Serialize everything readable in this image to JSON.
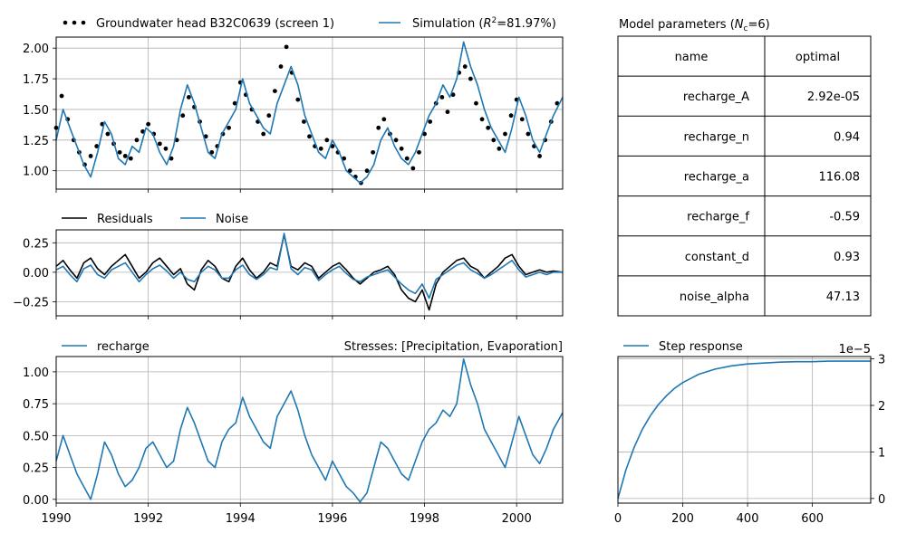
{
  "colors": {
    "blue": "#1f77b4",
    "black": "#000000",
    "grid": "#b0b0b0"
  },
  "chart_data": [
    {
      "type": "line",
      "panel": "head",
      "xlim": [
        1990,
        2001.0
      ],
      "ylim": [
        0.85,
        2.09
      ],
      "yticks": [
        1.0,
        1.25,
        1.5,
        1.75,
        2.0
      ],
      "ytick_labels": [
        "1.00",
        "1.25",
        "1.50",
        "1.75",
        "2.00"
      ],
      "grid": true,
      "legend": {
        "placement": "top",
        "items": [
          "Groundwater head B32C0639 (screen 1)",
          "Simulation (R²=81.97%)"
        ]
      },
      "legend_obs_label": "Groundwater head B32C0639 (screen 1)",
      "legend_sim_prefix": "Simulation (",
      "legend_sim_italic": "R",
      "legend_sim_sup": "2",
      "legend_sim_suffix": "=81.97%)",
      "series": [
        {
          "name": "Groundwater head B32C0639 (screen 1)",
          "style": "points",
          "x": [
            1990.0,
            1990.12,
            1990.25,
            1990.38,
            1990.5,
            1990.62,
            1990.75,
            1990.88,
            1991.0,
            1991.12,
            1991.25,
            1991.38,
            1991.5,
            1991.62,
            1991.75,
            1991.88,
            1992.0,
            1992.12,
            1992.25,
            1992.38,
            1992.5,
            1992.62,
            1992.75,
            1992.88,
            1993.0,
            1993.12,
            1993.25,
            1993.38,
            1993.5,
            1993.62,
            1993.75,
            1993.88,
            1994.0,
            1994.12,
            1994.25,
            1994.38,
            1994.5,
            1994.62,
            1994.75,
            1994.88,
            1995.0,
            1995.12,
            1995.25,
            1995.38,
            1995.5,
            1995.62,
            1995.75,
            1995.88,
            1996.0,
            1996.12,
            1996.25,
            1996.38,
            1996.5,
            1996.62,
            1996.75,
            1996.88,
            1997.0,
            1997.12,
            1997.25,
            1997.38,
            1997.5,
            1997.62,
            1997.75,
            1997.88,
            1998.0,
            1998.12,
            1998.25,
            1998.38,
            1998.5,
            1998.62,
            1998.75,
            1998.88,
            1999.0,
            1999.12,
            1999.25,
            1999.38,
            1999.5,
            1999.62,
            1999.75,
            1999.88,
            2000.0,
            2000.12,
            2000.25,
            2000.38,
            2000.5,
            2000.62,
            2000.75,
            2000.88
          ],
          "y": [
            1.35,
            1.61,
            1.42,
            1.25,
            1.15,
            1.05,
            1.12,
            1.2,
            1.38,
            1.3,
            1.22,
            1.15,
            1.12,
            1.1,
            1.25,
            1.32,
            1.38,
            1.3,
            1.22,
            1.18,
            1.1,
            1.25,
            1.45,
            1.6,
            1.52,
            1.4,
            1.28,
            1.15,
            1.2,
            1.3,
            1.35,
            1.55,
            1.72,
            1.62,
            1.5,
            1.4,
            1.3,
            1.45,
            1.65,
            1.85,
            2.01,
            1.8,
            1.58,
            1.4,
            1.28,
            1.2,
            1.18,
            1.25,
            1.2,
            1.15,
            1.1,
            1.0,
            0.95,
            0.9,
            1.0,
            1.15,
            1.35,
            1.42,
            1.3,
            1.25,
            1.18,
            1.1,
            1.02,
            1.15,
            1.3,
            1.4,
            1.55,
            1.6,
            1.48,
            1.62,
            1.8,
            1.85,
            1.75,
            1.55,
            1.42,
            1.35,
            1.25,
            1.18,
            1.3,
            1.45,
            1.58,
            1.42,
            1.3,
            1.2,
            1.12,
            1.25,
            1.4,
            1.55
          ]
        },
        {
          "name": "Simulation (R²=81.97%)",
          "style": "line",
          "x": [
            1990.0,
            1990.15,
            1990.3,
            1990.45,
            1990.6,
            1990.75,
            1990.9,
            1991.05,
            1991.2,
            1991.35,
            1991.5,
            1991.65,
            1991.8,
            1991.95,
            1992.1,
            1992.25,
            1992.4,
            1992.55,
            1992.7,
            1992.85,
            1993.0,
            1993.15,
            1993.3,
            1993.45,
            1993.6,
            1993.75,
            1993.9,
            1994.05,
            1994.2,
            1994.35,
            1994.5,
            1994.65,
            1994.8,
            1994.95,
            1995.1,
            1995.25,
            1995.4,
            1995.55,
            1995.7,
            1995.85,
            1996.0,
            1996.15,
            1996.3,
            1996.45,
            1996.6,
            1996.75,
            1996.9,
            1997.05,
            1997.2,
            1997.35,
            1997.5,
            1997.65,
            1997.8,
            1997.95,
            1998.1,
            1998.25,
            1998.4,
            1998.55,
            1998.7,
            1998.85,
            1999.0,
            1999.15,
            1999.3,
            1999.45,
            1999.6,
            1999.75,
            1999.9,
            2000.05,
            2000.2,
            2000.35,
            2000.5,
            2000.65,
            2000.8,
            2001.0
          ],
          "y": [
            1.25,
            1.5,
            1.35,
            1.2,
            1.05,
            0.95,
            1.15,
            1.4,
            1.3,
            1.1,
            1.05,
            1.2,
            1.15,
            1.35,
            1.3,
            1.15,
            1.05,
            1.2,
            1.5,
            1.7,
            1.55,
            1.35,
            1.15,
            1.1,
            1.3,
            1.4,
            1.5,
            1.75,
            1.55,
            1.45,
            1.35,
            1.3,
            1.55,
            1.7,
            1.85,
            1.7,
            1.45,
            1.3,
            1.15,
            1.1,
            1.25,
            1.15,
            1.0,
            0.95,
            0.9,
            0.95,
            1.05,
            1.25,
            1.35,
            1.2,
            1.1,
            1.05,
            1.15,
            1.3,
            1.45,
            1.55,
            1.7,
            1.6,
            1.75,
            2.05,
            1.85,
            1.7,
            1.5,
            1.35,
            1.25,
            1.15,
            1.35,
            1.6,
            1.45,
            1.25,
            1.15,
            1.3,
            1.45,
            1.6
          ]
        }
      ]
    },
    {
      "type": "line",
      "panel": "residuals",
      "xlim": [
        1990,
        2001.0
      ],
      "ylim": [
        -0.37,
        0.36
      ],
      "yticks": [
        -0.25,
        0.0,
        0.25
      ],
      "ytick_labels": [
        "−0.25",
        "0.00",
        "0.25"
      ],
      "grid": true,
      "legend": {
        "placement": "top",
        "items": [
          "Residuals",
          "Noise"
        ]
      },
      "series": [
        {
          "name": "Residuals",
          "x": [
            1990.0,
            1990.15,
            1990.3,
            1990.45,
            1990.6,
            1990.75,
            1990.9,
            1991.05,
            1991.2,
            1991.35,
            1991.5,
            1991.65,
            1991.8,
            1991.95,
            1992.1,
            1992.25,
            1992.4,
            1992.55,
            1992.7,
            1992.85,
            1993.0,
            1993.15,
            1993.3,
            1993.45,
            1993.6,
            1993.75,
            1993.9,
            1994.05,
            1994.2,
            1994.35,
            1994.5,
            1994.65,
            1994.8,
            1994.95,
            1995.1,
            1995.25,
            1995.4,
            1995.55,
            1995.7,
            1995.85,
            1996.0,
            1996.15,
            1996.3,
            1996.45,
            1996.6,
            1996.75,
            1996.9,
            1997.05,
            1997.2,
            1997.35,
            1997.5,
            1997.65,
            1997.8,
            1997.95,
            1998.1,
            1998.25,
            1998.4,
            1998.55,
            1998.7,
            1998.85,
            1999.0,
            1999.15,
            1999.3,
            1999.45,
            1999.6,
            1999.75,
            1999.9,
            2000.05,
            2000.2,
            2000.35,
            2000.5,
            2000.65,
            2000.8,
            2001.0
          ],
          "y": [
            0.05,
            0.1,
            0.02,
            -0.05,
            0.08,
            0.12,
            0.03,
            -0.02,
            0.05,
            0.1,
            0.15,
            0.05,
            -0.05,
            0.0,
            0.08,
            0.12,
            0.05,
            -0.02,
            0.03,
            -0.1,
            -0.15,
            0.02,
            0.1,
            0.05,
            -0.05,
            -0.08,
            0.05,
            0.12,
            0.02,
            -0.05,
            0.0,
            0.08,
            0.05,
            0.32,
            0.05,
            0.02,
            0.08,
            0.05,
            -0.05,
            0.0,
            0.05,
            0.08,
            0.02,
            -0.05,
            -0.1,
            -0.05,
            0.0,
            0.02,
            0.05,
            -0.02,
            -0.15,
            -0.22,
            -0.25,
            -0.15,
            -0.32,
            -0.1,
            0.0,
            0.05,
            0.1,
            0.12,
            0.05,
            0.02,
            -0.05,
            0.0,
            0.05,
            0.12,
            0.15,
            0.05,
            -0.02,
            0.0,
            0.02,
            0.0,
            0.01,
            0.0
          ]
        },
        {
          "name": "Noise",
          "x": [
            1990.0,
            1990.15,
            1990.3,
            1990.45,
            1990.6,
            1990.75,
            1990.9,
            1991.05,
            1991.2,
            1991.35,
            1991.5,
            1991.65,
            1991.8,
            1991.95,
            1992.1,
            1992.25,
            1992.4,
            1992.55,
            1992.7,
            1992.85,
            1993.0,
            1993.15,
            1993.3,
            1993.45,
            1993.6,
            1993.75,
            1993.9,
            1994.05,
            1994.2,
            1994.35,
            1994.5,
            1994.65,
            1994.8,
            1994.95,
            1995.1,
            1995.25,
            1995.4,
            1995.55,
            1995.7,
            1995.85,
            1996.0,
            1996.15,
            1996.3,
            1996.45,
            1996.6,
            1996.75,
            1996.9,
            1997.05,
            1997.2,
            1997.35,
            1997.5,
            1997.65,
            1997.8,
            1997.95,
            1998.1,
            1998.25,
            1998.4,
            1998.55,
            1998.7,
            1998.85,
            1999.0,
            1999.15,
            1999.3,
            1999.45,
            1999.6,
            1999.75,
            1999.9,
            2000.05,
            2000.2,
            2000.35,
            2000.5,
            2000.65,
            2000.8,
            2001.0
          ],
          "y": [
            0.02,
            0.05,
            -0.02,
            -0.08,
            0.03,
            0.06,
            -0.02,
            -0.05,
            0.02,
            0.05,
            0.08,
            0.0,
            -0.08,
            -0.02,
            0.03,
            0.06,
            0.01,
            -0.05,
            0.0,
            -0.06,
            -0.08,
            0.0,
            0.05,
            0.02,
            -0.05,
            -0.05,
            0.02,
            0.06,
            -0.02,
            -0.06,
            -0.02,
            0.04,
            0.02,
            0.33,
            0.03,
            -0.02,
            0.04,
            0.02,
            -0.07,
            -0.02,
            0.02,
            0.05,
            -0.01,
            -0.06,
            -0.08,
            -0.04,
            -0.02,
            0.0,
            0.02,
            -0.04,
            -0.1,
            -0.15,
            -0.18,
            -0.1,
            -0.22,
            -0.06,
            -0.02,
            0.02,
            0.06,
            0.08,
            0.02,
            -0.01,
            -0.05,
            -0.02,
            0.02,
            0.06,
            0.1,
            0.02,
            -0.04,
            -0.02,
            0.0,
            -0.02,
            0.0,
            0.0
          ]
        }
      ]
    },
    {
      "type": "line",
      "panel": "recharge",
      "title_right": "Stresses: [Precipitation, Evaporation]",
      "xlim": [
        1990,
        2001.0
      ],
      "ylim": [
        -0.03,
        1.12
      ],
      "yticks": [
        0.0,
        0.25,
        0.5,
        0.75,
        1.0
      ],
      "ytick_labels": [
        "0.00",
        "0.25",
        "0.50",
        "0.75",
        "1.00"
      ],
      "xticks": [
        1990,
        1992,
        1994,
        1996,
        1998,
        2000
      ],
      "xtick_labels": [
        "1990",
        "1992",
        "1994",
        "1996",
        "1998",
        "2000"
      ],
      "grid": true,
      "legend": {
        "placement": "top-left",
        "items": [
          "recharge"
        ]
      },
      "series": [
        {
          "name": "recharge",
          "x": [
            1990.0,
            1990.15,
            1990.3,
            1990.45,
            1990.6,
            1990.75,
            1990.9,
            1991.05,
            1991.2,
            1991.35,
            1991.5,
            1991.65,
            1991.8,
            1991.95,
            1992.1,
            1992.25,
            1992.4,
            1992.55,
            1992.7,
            1992.85,
            1993.0,
            1993.15,
            1993.3,
            1993.45,
            1993.6,
            1993.75,
            1993.9,
            1994.05,
            1994.2,
            1994.35,
            1994.5,
            1994.65,
            1994.8,
            1994.95,
            1995.1,
            1995.25,
            1995.4,
            1995.55,
            1995.7,
            1995.85,
            1996.0,
            1996.15,
            1996.3,
            1996.45,
            1996.6,
            1996.75,
            1996.9,
            1997.05,
            1997.2,
            1997.35,
            1997.5,
            1997.65,
            1997.8,
            1997.95,
            1998.1,
            1998.25,
            1998.4,
            1998.55,
            1998.7,
            1998.85,
            1999.0,
            1999.15,
            1999.3,
            1999.45,
            1999.6,
            1999.75,
            1999.9,
            2000.05,
            2000.2,
            2000.35,
            2000.5,
            2000.65,
            2000.8,
            2001.0
          ],
          "y": [
            0.3,
            0.5,
            0.35,
            0.2,
            0.1,
            0.0,
            0.2,
            0.45,
            0.35,
            0.2,
            0.1,
            0.15,
            0.25,
            0.4,
            0.45,
            0.35,
            0.25,
            0.3,
            0.55,
            0.72,
            0.6,
            0.45,
            0.3,
            0.25,
            0.45,
            0.55,
            0.6,
            0.8,
            0.65,
            0.55,
            0.45,
            0.4,
            0.65,
            0.75,
            0.85,
            0.7,
            0.5,
            0.35,
            0.25,
            0.15,
            0.3,
            0.2,
            0.1,
            0.05,
            -0.02,
            0.05,
            0.25,
            0.45,
            0.4,
            0.3,
            0.2,
            0.15,
            0.3,
            0.45,
            0.55,
            0.6,
            0.7,
            0.65,
            0.75,
            1.1,
            0.9,
            0.75,
            0.55,
            0.45,
            0.35,
            0.25,
            0.45,
            0.65,
            0.5,
            0.35,
            0.28,
            0.4,
            0.55,
            0.68
          ]
        }
      ]
    },
    {
      "type": "line",
      "panel": "step",
      "xlim": [
        0,
        780
      ],
      "ylim": [
        -0.1,
        3.05
      ],
      "xticks": [
        0,
        200,
        400,
        600
      ],
      "xtick_labels": [
        "0",
        "200",
        "400",
        "600"
      ],
      "yticks": [
        0,
        1,
        2,
        3
      ],
      "ytick_labels": [
        "0",
        "1",
        "2",
        "3"
      ],
      "y_offset_label": "1e−5",
      "grid": true,
      "legend": {
        "placement": "top-left",
        "items": [
          "Step response"
        ]
      },
      "series": [
        {
          "name": "Step response",
          "x": [
            0,
            25,
            50,
            75,
            100,
            125,
            150,
            175,
            200,
            250,
            300,
            350,
            400,
            450,
            500,
            550,
            600,
            650,
            700,
            780
          ],
          "y": [
            0.0,
            0.62,
            1.1,
            1.48,
            1.78,
            2.02,
            2.21,
            2.37,
            2.49,
            2.67,
            2.78,
            2.85,
            2.89,
            2.91,
            2.93,
            2.94,
            2.94,
            2.95,
            2.95,
            2.95
          ]
        }
      ]
    }
  ],
  "param_table": {
    "title_prefix": "Model parameters (",
    "title_italic": "N",
    "title_sub": "c",
    "title_suffix": "=6)",
    "headers": [
      "name",
      "optimal"
    ],
    "rows": [
      [
        "recharge_A",
        "2.92e-05"
      ],
      [
        "recharge_n",
        "0.94"
      ],
      [
        "recharge_a",
        "116.08"
      ],
      [
        "recharge_f",
        "-0.59"
      ],
      [
        "constant_d",
        "0.93"
      ],
      [
        "noise_alpha",
        "47.13"
      ]
    ]
  }
}
